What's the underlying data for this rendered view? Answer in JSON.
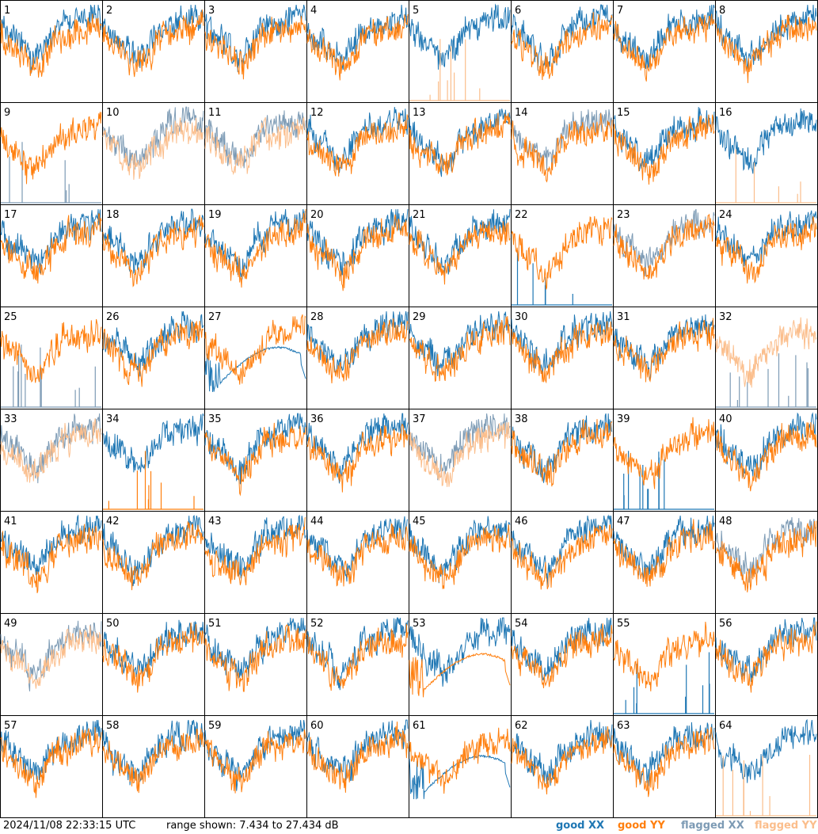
{
  "footer": {
    "timestamp": "2024/11/08 22:33:15 UTC",
    "range_label": "range shown: 7.434 to 27.434 dB"
  },
  "colors": {
    "good_xx": "#1f77b4",
    "good_yy": "#ff7f0e",
    "flagged_xx": "#7d9bb5",
    "flagged_yy": "#fbbe8c"
  },
  "chart_data": {
    "type": "line",
    "ylim": [
      7.434,
      27.434
    ],
    "ylabel_unit": "dB",
    "grid": "8x8",
    "legend": [
      {
        "label": "good XX",
        "color": "#1f77b4"
      },
      {
        "label": "good YY",
        "color": "#ff7f0e"
      },
      {
        "label": "flagged XX",
        "color": "#7d9bb5"
      },
      {
        "label": "flagged YY",
        "color": "#fbbe8c"
      }
    ],
    "panels": [
      {
        "id": "1",
        "xx": "good",
        "yy": "good"
      },
      {
        "id": "2",
        "xx": "good",
        "yy": "good"
      },
      {
        "id": "3",
        "xx": "good",
        "yy": "good"
      },
      {
        "id": "4",
        "xx": "good",
        "yy": "good"
      },
      {
        "id": "5",
        "xx": "good",
        "yy": "flagged",
        "yy_style": "spikes"
      },
      {
        "id": "6",
        "xx": "good",
        "yy": "good"
      },
      {
        "id": "7",
        "xx": "good",
        "yy": "good"
      },
      {
        "id": "8",
        "xx": "good",
        "yy": "good"
      },
      {
        "id": "9",
        "xx": "flagged",
        "yy": "good",
        "xx_style": "spikes"
      },
      {
        "id": "10",
        "xx": "flagged",
        "yy": "flagged"
      },
      {
        "id": "11",
        "xx": "flagged",
        "yy": "flagged"
      },
      {
        "id": "12",
        "xx": "good",
        "yy": "good"
      },
      {
        "id": "13",
        "xx": "good",
        "yy": "good"
      },
      {
        "id": "14",
        "xx": "flagged",
        "yy": "good"
      },
      {
        "id": "15",
        "xx": "good",
        "yy": "good"
      },
      {
        "id": "16",
        "xx": "good",
        "yy": "flagged",
        "yy_style": "spikes"
      },
      {
        "id": "17",
        "xx": "good",
        "yy": "good"
      },
      {
        "id": "18",
        "xx": "good",
        "yy": "good"
      },
      {
        "id": "19",
        "xx": "good",
        "yy": "good"
      },
      {
        "id": "20",
        "xx": "good",
        "yy": "good"
      },
      {
        "id": "21",
        "xx": "good",
        "yy": "good"
      },
      {
        "id": "22",
        "xx": "good",
        "yy": "good",
        "xx_style": "spikes"
      },
      {
        "id": "23",
        "xx": "flagged",
        "yy": "good"
      },
      {
        "id": "24",
        "xx": "good",
        "yy": "good"
      },
      {
        "id": "25",
        "xx": "flagged",
        "yy": "good",
        "xx_style": "spikes"
      },
      {
        "id": "26",
        "xx": "good",
        "yy": "good"
      },
      {
        "id": "27",
        "xx": "good",
        "yy": "good",
        "xx_style": "dish"
      },
      {
        "id": "28",
        "xx": "good",
        "yy": "good"
      },
      {
        "id": "29",
        "xx": "good",
        "yy": "good"
      },
      {
        "id": "30",
        "xx": "good",
        "yy": "good"
      },
      {
        "id": "31",
        "xx": "good",
        "yy": "good"
      },
      {
        "id": "32",
        "xx": "flagged",
        "yy": "flagged",
        "xx_style": "spikes"
      },
      {
        "id": "33",
        "xx": "flagged",
        "yy": "flagged"
      },
      {
        "id": "34",
        "xx": "good",
        "yy": "good",
        "yy_style": "spikes"
      },
      {
        "id": "35",
        "xx": "good",
        "yy": "good"
      },
      {
        "id": "36",
        "xx": "good",
        "yy": "good"
      },
      {
        "id": "37",
        "xx": "flagged",
        "yy": "flagged"
      },
      {
        "id": "38",
        "xx": "good",
        "yy": "good"
      },
      {
        "id": "39",
        "xx": "good",
        "yy": "good",
        "xx_style": "spikes"
      },
      {
        "id": "40",
        "xx": "good",
        "yy": "good"
      },
      {
        "id": "41",
        "xx": "good",
        "yy": "good"
      },
      {
        "id": "42",
        "xx": "good",
        "yy": "good"
      },
      {
        "id": "43",
        "xx": "good",
        "yy": "good"
      },
      {
        "id": "44",
        "xx": "good",
        "yy": "good"
      },
      {
        "id": "45",
        "xx": "good",
        "yy": "good"
      },
      {
        "id": "46",
        "xx": "good",
        "yy": "good"
      },
      {
        "id": "47",
        "xx": "good",
        "yy": "good"
      },
      {
        "id": "48",
        "xx": "flagged",
        "yy": "good"
      },
      {
        "id": "49",
        "xx": "flagged",
        "yy": "flagged"
      },
      {
        "id": "50",
        "xx": "good",
        "yy": "good"
      },
      {
        "id": "51",
        "xx": "good",
        "yy": "good"
      },
      {
        "id": "52",
        "xx": "good",
        "yy": "good"
      },
      {
        "id": "53",
        "xx": "good",
        "yy": "good",
        "yy_style": "dish"
      },
      {
        "id": "54",
        "xx": "good",
        "yy": "good"
      },
      {
        "id": "55",
        "xx": "good",
        "yy": "good",
        "xx_style": "spikes"
      },
      {
        "id": "56",
        "xx": "good",
        "yy": "good"
      },
      {
        "id": "57",
        "xx": "good",
        "yy": "good"
      },
      {
        "id": "58",
        "xx": "good",
        "yy": "good"
      },
      {
        "id": "59",
        "xx": "good",
        "yy": "good"
      },
      {
        "id": "60",
        "xx": "good",
        "yy": "good"
      },
      {
        "id": "61",
        "xx": "good",
        "yy": "good",
        "xx_style": "dish"
      },
      {
        "id": "62",
        "xx": "good",
        "yy": "good"
      },
      {
        "id": "63",
        "xx": "good",
        "yy": "good"
      },
      {
        "id": "64",
        "xx": "good",
        "yy": "flagged",
        "yy_style": "spikes"
      }
    ]
  }
}
